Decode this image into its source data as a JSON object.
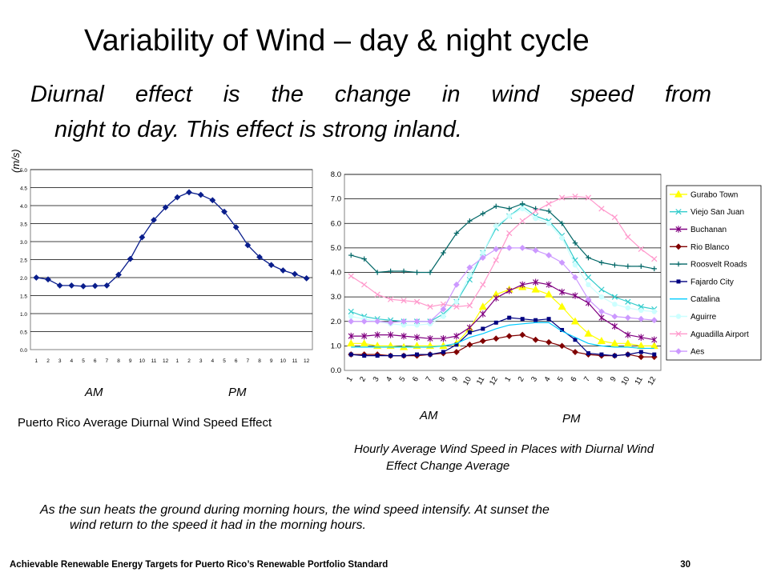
{
  "slide": {
    "title": "Variability of Wind – day & night cycle",
    "subtitle_line1": "Diurnal effect is the change in wind speed from",
    "subtitle_line2": "night to day. This effect is strong inland.",
    "note_line1": "As the sun heats the ground during morning hours, the wind speed intensify. At sunset the",
    "note_line2": "wind return to the speed it had in the morning hours.",
    "footer_text": "Achievable Renewable Energy Targets for Puerto Rico’s Renewable Portfolio Standard",
    "page_number": "30"
  },
  "left_labels": {
    "am": "AM",
    "pm": "PM",
    "caption": "Puerto Rico Average Diurnal Wind Speed Effect"
  },
  "right_labels": {
    "am": "AM",
    "pm": "PM",
    "caption_line1": "Hourly Average Wind Speed in Places with Diurnal Wind",
    "caption_line2": "Effect Change Average"
  },
  "chart_data": [
    {
      "type": "line",
      "title": "",
      "ylabel": "(m/s)",
      "xlabel": "",
      "categories": [
        "1",
        "2",
        "3",
        "4",
        "5",
        "6",
        "7",
        "8",
        "9",
        "10",
        "11",
        "12",
        "1",
        "2",
        "3",
        "4",
        "5",
        "6",
        "7",
        "8",
        "9",
        "10",
        "11",
        "12"
      ],
      "ylim": [
        0,
        5.0
      ],
      "yticks": [
        "0.0",
        "0.5",
        "1.0",
        "1.5",
        "2.0",
        "2.5",
        "3.0",
        "3.5",
        "4.0",
        "4.5",
        "5.0"
      ],
      "grid": true,
      "series": [
        {
          "color": "#0a1e8c",
          "values": [
            2.0,
            1.95,
            1.78,
            1.78,
            1.76,
            1.77,
            1.78,
            2.08,
            2.52,
            3.12,
            3.6,
            3.95,
            4.23,
            4.37,
            4.3,
            4.15,
            3.83,
            3.4,
            2.9,
            2.57,
            2.35,
            2.2,
            2.1,
            1.98
          ]
        }
      ]
    },
    {
      "type": "line",
      "title": "",
      "xlabel": "",
      "ylabel": "",
      "categories": [
        "1",
        "2",
        "3",
        "4",
        "5",
        "6",
        "7",
        "8",
        "9",
        "10",
        "11",
        "12",
        "1",
        "2",
        "3",
        "4",
        "5",
        "6",
        "7",
        "8",
        "9",
        "10",
        "11",
        "12"
      ],
      "ylim": [
        0,
        8.0
      ],
      "yticks": [
        "0.0",
        "1.0",
        "2.0",
        "3.0",
        "4.0",
        "5.0",
        "6.0",
        "7.0",
        "8.0"
      ],
      "grid": true,
      "legend": "right",
      "series": [
        {
          "name": "Gurabo Town",
          "color": "#ffff00",
          "marker": "triangle",
          "values": [
            1.1,
            1.1,
            1.0,
            1.0,
            0.95,
            1.0,
            1.0,
            1.0,
            1.1,
            1.7,
            2.6,
            3.1,
            3.3,
            3.4,
            3.3,
            3.1,
            2.6,
            2.0,
            1.5,
            1.2,
            1.1,
            1.1,
            1.0,
            1.0
          ]
        },
        {
          "name": "Viejo San Juan",
          "color": "#33cccc",
          "marker": "x",
          "values": [
            2.4,
            2.2,
            2.1,
            2.05,
            2.0,
            2.0,
            2.0,
            2.3,
            2.8,
            3.7,
            4.8,
            5.8,
            6.3,
            6.7,
            6.3,
            6.1,
            5.5,
            4.5,
            3.8,
            3.3,
            3.0,
            2.8,
            2.6,
            2.5
          ]
        },
        {
          "name": "Buchanan",
          "color": "#800080",
          "marker": "star",
          "values": [
            1.4,
            1.4,
            1.45,
            1.45,
            1.4,
            1.35,
            1.3,
            1.3,
            1.4,
            1.75,
            2.3,
            2.95,
            3.25,
            3.5,
            3.6,
            3.5,
            3.2,
            3.05,
            2.75,
            2.15,
            1.8,
            1.45,
            1.35,
            1.25
          ]
        },
        {
          "name": "Rio Blanco",
          "color": "#800000",
          "marker": "diamond",
          "values": [
            0.65,
            0.65,
            0.65,
            0.6,
            0.6,
            0.6,
            0.65,
            0.7,
            0.75,
            1.05,
            1.2,
            1.3,
            1.4,
            1.45,
            1.25,
            1.15,
            1.0,
            0.75,
            0.65,
            0.6,
            0.6,
            0.65,
            0.55,
            0.55
          ]
        },
        {
          "name": "Roosvelt Roads",
          "color": "#006666",
          "marker": "plus",
          "values": [
            4.7,
            4.55,
            4.0,
            4.05,
            4.05,
            4.0,
            4.0,
            4.8,
            5.6,
            6.1,
            6.4,
            6.7,
            6.6,
            6.8,
            6.6,
            6.5,
            6.0,
            5.2,
            4.6,
            4.4,
            4.3,
            4.25,
            4.25,
            4.15
          ]
        },
        {
          "name": "Fajardo City",
          "color": "#000080",
          "marker": "square",
          "values": [
            0.65,
            0.6,
            0.6,
            0.6,
            0.6,
            0.65,
            0.65,
            0.75,
            1.05,
            1.55,
            1.7,
            1.95,
            2.15,
            2.1,
            2.05,
            2.1,
            1.65,
            1.25,
            0.7,
            0.65,
            0.6,
            0.65,
            0.75,
            0.65
          ]
        },
        {
          "name": "Catalina",
          "color": "#00ccff",
          "marker": "none",
          "values": [
            0.95,
            0.95,
            0.95,
            0.95,
            0.95,
            0.95,
            0.95,
            1.0,
            1.1,
            1.35,
            1.5,
            1.7,
            1.85,
            1.9,
            1.95,
            1.95,
            1.6,
            1.35,
            1.1,
            1.0,
            0.95,
            0.95,
            0.9,
            0.9
          ]
        },
        {
          "name": "Aguirre",
          "color": "#ccffff",
          "marker": "circle",
          "values": [
            2.2,
            2.1,
            2.0,
            1.9,
            1.85,
            1.85,
            1.9,
            2.2,
            2.8,
            3.9,
            4.8,
            5.9,
            6.3,
            6.6,
            6.2,
            6.0,
            5.4,
            4.3,
            3.5,
            3.0,
            2.7,
            2.55,
            2.45,
            2.4
          ]
        },
        {
          "name": "Aguadilla Airport",
          "color": "#ff99cc",
          "marker": "x",
          "values": [
            3.85,
            3.5,
            3.1,
            2.9,
            2.85,
            2.8,
            2.6,
            2.7,
            2.6,
            2.65,
            3.5,
            4.5,
            5.6,
            6.1,
            6.5,
            6.8,
            7.05,
            7.1,
            7.05,
            6.6,
            6.25,
            5.45,
            4.95,
            4.55
          ]
        },
        {
          "name": "Aes",
          "color": "#cc99ff",
          "marker": "diamond",
          "values": [
            2.0,
            2.0,
            2.0,
            1.95,
            2.0,
            2.0,
            2.0,
            2.5,
            3.5,
            4.2,
            4.6,
            4.95,
            5.0,
            5.0,
            4.9,
            4.7,
            4.4,
            3.8,
            2.9,
            2.4,
            2.2,
            2.15,
            2.1,
            2.05
          ]
        }
      ]
    }
  ]
}
